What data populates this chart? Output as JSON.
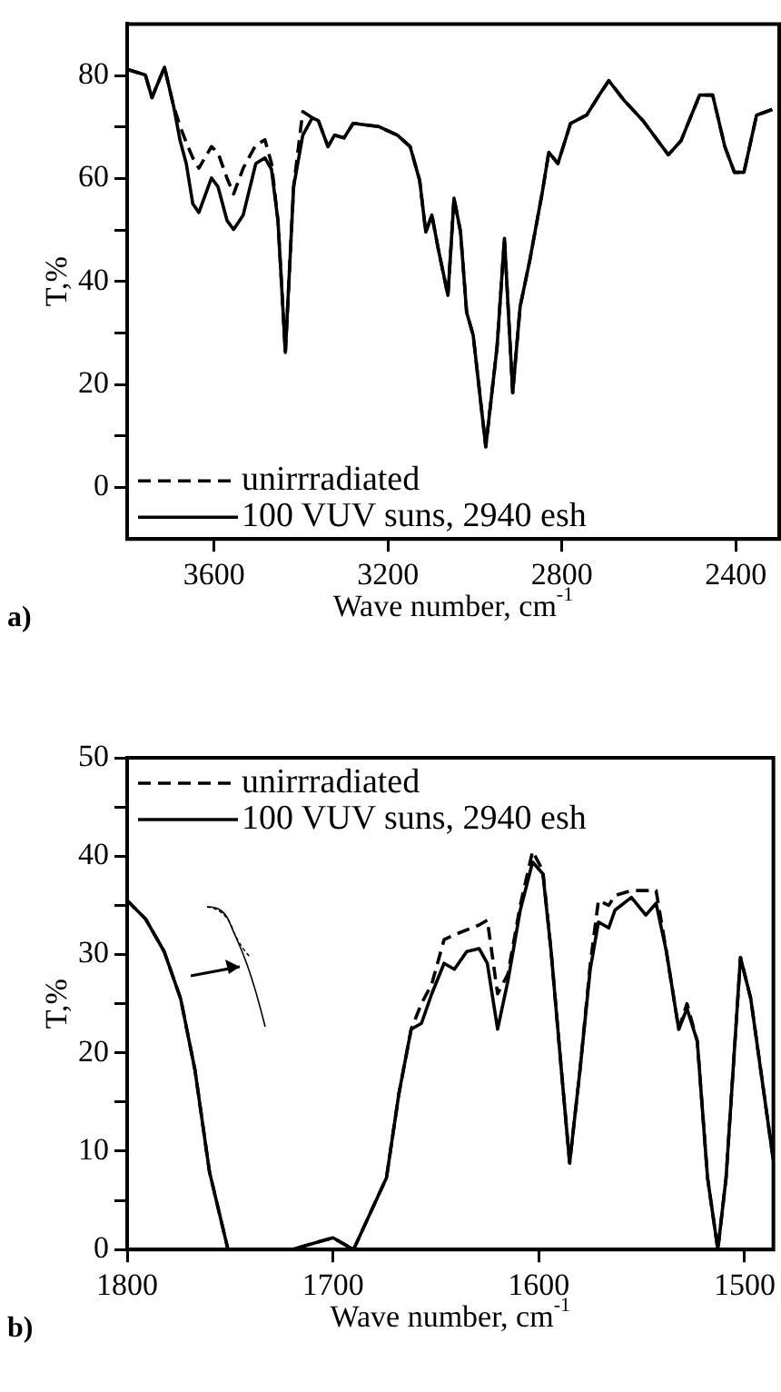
{
  "chart_data": [
    {
      "type": "line",
      "xlabel": "Wave number, cm$^{-1}$",
      "ylabel": "T,%",
      "annotations": [
        "a)"
      ],
      "legend": "bottom left",
      "marker": "none",
      "grid": false,
      "xlim": [
        3800,
        2300
      ],
      "xticks": [
        3600,
        3200,
        2800,
        2400
      ],
      "ylim": [
        -10,
        90
      ],
      "yticks": [
        0,
        {
          "value": 10,
          "label": null
        },
        20,
        {
          "value": 30,
          "label": null
        },
        40,
        {
          "value": 50,
          "label": null
        },
        60,
        {
          "value": 70,
          "label": null
        },
        80
      ],
      "x": [
        3800,
        3758,
        3743,
        3714,
        3693,
        3678,
        3664,
        3649,
        3635,
        3606,
        3591,
        3570,
        3555,
        3533,
        3504,
        3483,
        3468,
        3453,
        3436,
        3417,
        3396,
        3374,
        3360,
        3338,
        3323,
        3301,
        3280,
        3222,
        3178,
        3149,
        3127,
        3113,
        3099,
        3084,
        3062,
        3048,
        3033,
        3019,
        3004,
        2975,
        2949,
        2932,
        2913,
        2896,
        2874,
        2845,
        2830,
        2809,
        2780,
        2743,
        2714,
        2692,
        2656,
        2613,
        2555,
        2526,
        2483,
        2453,
        2425,
        2403,
        2381,
        2352,
        2316
      ],
      "series": [
        {
          "name": "unirrradiated",
          "color": "#000000",
          "line_style": "dashed",
          "values": [
            81.2,
            80.1,
            75.7,
            81.6,
            74,
            70.1,
            67,
            64,
            62,
            66.2,
            65,
            60,
            57,
            62,
            66.5,
            67.5,
            63,
            51.8,
            26.2,
            58.4,
            73,
            71.8,
            71.2,
            66.2,
            68.4,
            67.9,
            70.7,
            70.1,
            68.4,
            66.2,
            59.6,
            49.6,
            52.9,
            46.2,
            37.3,
            56.2,
            49.6,
            34,
            29.6,
            7.9,
            27.3,
            48.4,
            18.4,
            35.1,
            44,
            57.3,
            65.1,
            62.9,
            70.7,
            72.3,
            76.2,
            79,
            75.1,
            71.2,
            64.6,
            67.3,
            76.2,
            76.2,
            66.2,
            61.2,
            61.2,
            72.3,
            73.4
          ]
        },
        {
          "name": "100 VUV suns, 2940 esh",
          "color": "#000000",
          "line_style": "solid",
          "values": [
            81.2,
            80.1,
            75.7,
            81.6,
            74,
            67.3,
            62.9,
            55.1,
            53.4,
            60.1,
            58.4,
            51.8,
            50.1,
            52.9,
            62.9,
            64,
            61.8,
            51.8,
            26.2,
            58.4,
            68.4,
            71.8,
            71.2,
            66.2,
            68.4,
            67.9,
            70.7,
            70.1,
            68.4,
            66.2,
            59.6,
            49.6,
            52.9,
            46.2,
            37.3,
            56.2,
            49.6,
            34,
            29.6,
            7.9,
            27.3,
            48.4,
            18.4,
            35.1,
            44,
            57.3,
            65.1,
            62.9,
            70.7,
            72.3,
            76.2,
            79,
            75.1,
            71.2,
            64.6,
            67.3,
            76.2,
            76.2,
            66.2,
            61.2,
            61.2,
            72.3,
            73.4
          ]
        }
      ]
    },
    {
      "type": "line",
      "xlabel": "Wave number, cm$^{-1}$",
      "ylabel": "T,%",
      "annotations": [
        "b)"
      ],
      "legend": "top left",
      "marker": "none",
      "grid": false,
      "xlim": [
        1800,
        1486
      ],
      "xticks": [
        1800,
        1700,
        1600,
        1500
      ],
      "ylim": [
        0,
        50
      ],
      "yticks": [
        0,
        {
          "value": 5,
          "label": null
        },
        10,
        {
          "value": 15,
          "label": null
        },
        20,
        {
          "value": 25,
          "label": null
        },
        30,
        {
          "value": 35,
          "label": null
        },
        40,
        {
          "value": 45,
          "label": null
        },
        50
      ],
      "x": [
        1800,
        1791,
        1782,
        1774,
        1767,
        1760,
        1751,
        1720,
        1700,
        1690,
        1674,
        1668,
        1662,
        1657,
        1652,
        1646,
        1641,
        1635,
        1629,
        1625,
        1620,
        1615,
        1609,
        1603,
        1598,
        1594,
        1589,
        1585,
        1580,
        1575,
        1571,
        1566,
        1563,
        1555,
        1548,
        1543,
        1538,
        1532,
        1528,
        1523,
        1518,
        1513,
        1509,
        1502,
        1497,
        1486
      ],
      "series": [
        {
          "name": "unirrradiated",
          "color": "#000000",
          "line_style": "dashed",
          "values": [
            35.5,
            33.6,
            30.3,
            25.5,
            18.2,
            7.9,
            0,
            0,
            1.2,
            0,
            7.3,
            15.8,
            22.4,
            25,
            27,
            31.5,
            32,
            32.5,
            33,
            33.5,
            26,
            28,
            35,
            40.5,
            38.5,
            30.3,
            18.2,
            8.8,
            18.2,
            29,
            35.5,
            35,
            36,
            36.5,
            36.5,
            36.5,
            30.3,
            22.4,
            25,
            21.2,
            7.3,
            0,
            7.3,
            29.7,
            25.5,
            9
          ]
        },
        {
          "name": "100 VUV suns, 2940 esh",
          "color": "#000000",
          "line_style": "solid",
          "values": [
            35.5,
            33.6,
            30.3,
            25.5,
            18.2,
            7.9,
            0,
            0,
            1.2,
            0,
            7.3,
            15.8,
            22.4,
            23,
            26,
            29.1,
            28.5,
            30.3,
            30.6,
            29.1,
            22.4,
            27.3,
            34.5,
            39.4,
            38.2,
            30.3,
            18.2,
            8.8,
            18.2,
            28.5,
            33.3,
            32.7,
            34.5,
            35.8,
            34,
            35.2,
            30.3,
            22.4,
            24.5,
            21.2,
            7.3,
            0,
            7.3,
            29.7,
            25.5,
            9
          ]
        }
      ]
    }
  ]
}
